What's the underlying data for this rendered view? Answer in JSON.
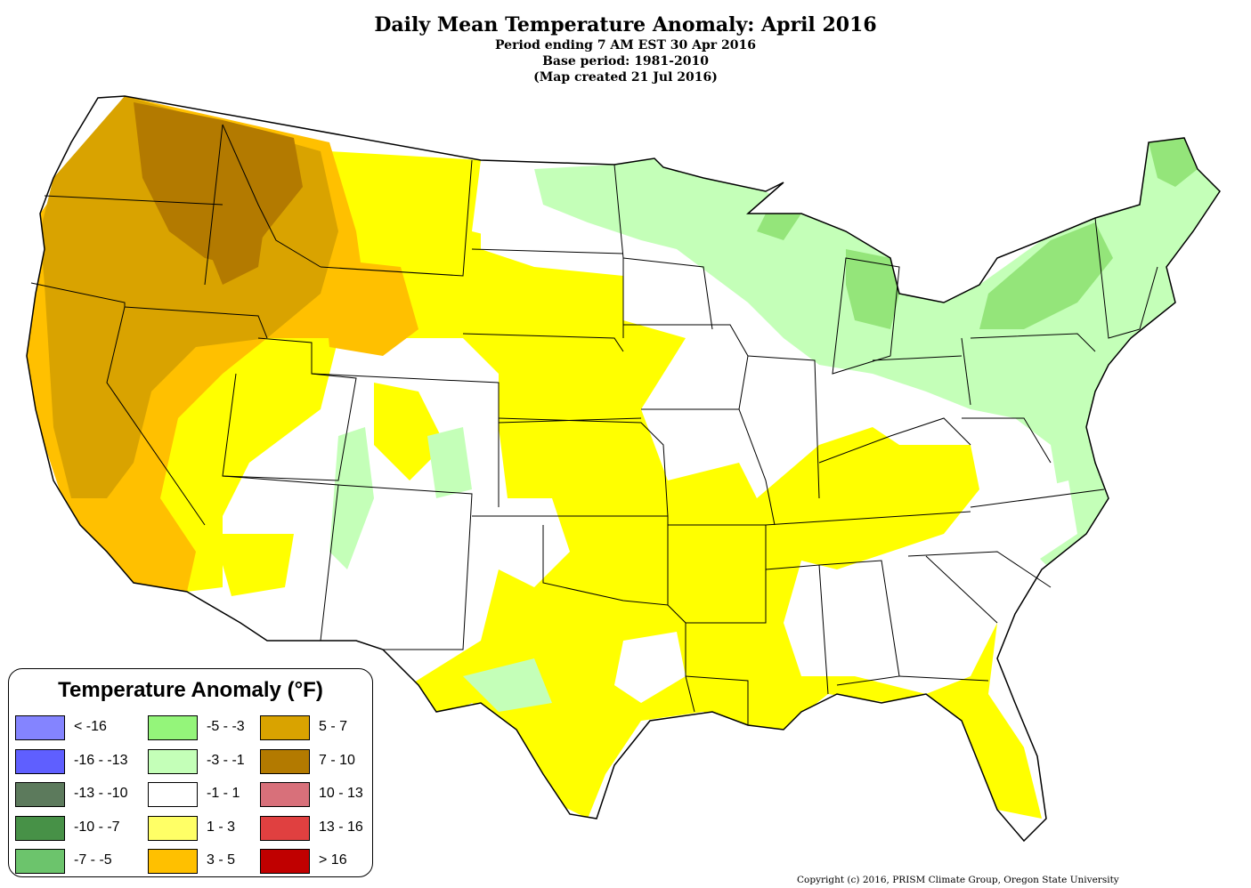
{
  "header": {
    "title": "Daily Mean Temperature Anomaly: April 2016",
    "period": "Period ending 7 AM EST 30 Apr 2016",
    "base": "Base period: 1981-2010",
    "created": "(Map created 21 Jul 2016)"
  },
  "legend": {
    "title": "Temperature Anomaly (°F)",
    "items": [
      {
        "label": "< -16",
        "color": "#8484ff"
      },
      {
        "label": "-16 - -13",
        "color": "#5f5fff"
      },
      {
        "label": "-13 - -10",
        "color": "#5c7a5c"
      },
      {
        "label": "-10 - -7",
        "color": "#479147"
      },
      {
        "label": "-7 - -5",
        "color": "#6cc46c"
      },
      {
        "label": "-5 - -3",
        "color": "#94f57a"
      },
      {
        "label": "-3 - -1",
        "color": "#c4ffb8"
      },
      {
        "label": "-1 - 1",
        "color": "#ffffff"
      },
      {
        "label": "1 - 3",
        "color": "#ffff66"
      },
      {
        "label": "3 - 5",
        "color": "#ffc000"
      },
      {
        "label": "5 - 7",
        "color": "#d9a300"
      },
      {
        "label": "7 - 10",
        "color": "#b37a00"
      },
      {
        "label": "10 - 13",
        "color": "#d8707a"
      },
      {
        "label": "13 - 16",
        "color": "#e04040"
      },
      {
        "label": "> 16",
        "color": "#c00000"
      }
    ]
  },
  "map_colors": {
    "land_neutral": "#ffffff",
    "anomaly_1_3": "#ffff00",
    "anomaly_3_5": "#ffc000",
    "anomaly_5_7": "#d9a300",
    "anomaly_7_10": "#b37a00",
    "anomaly_neg1_neg3": "#c4ffb8",
    "anomaly_neg3_neg5": "#94e57a",
    "borders": "#000000"
  },
  "copyright": "Copyright (c) 2016, PRISM Climate Group, Oregon State University"
}
